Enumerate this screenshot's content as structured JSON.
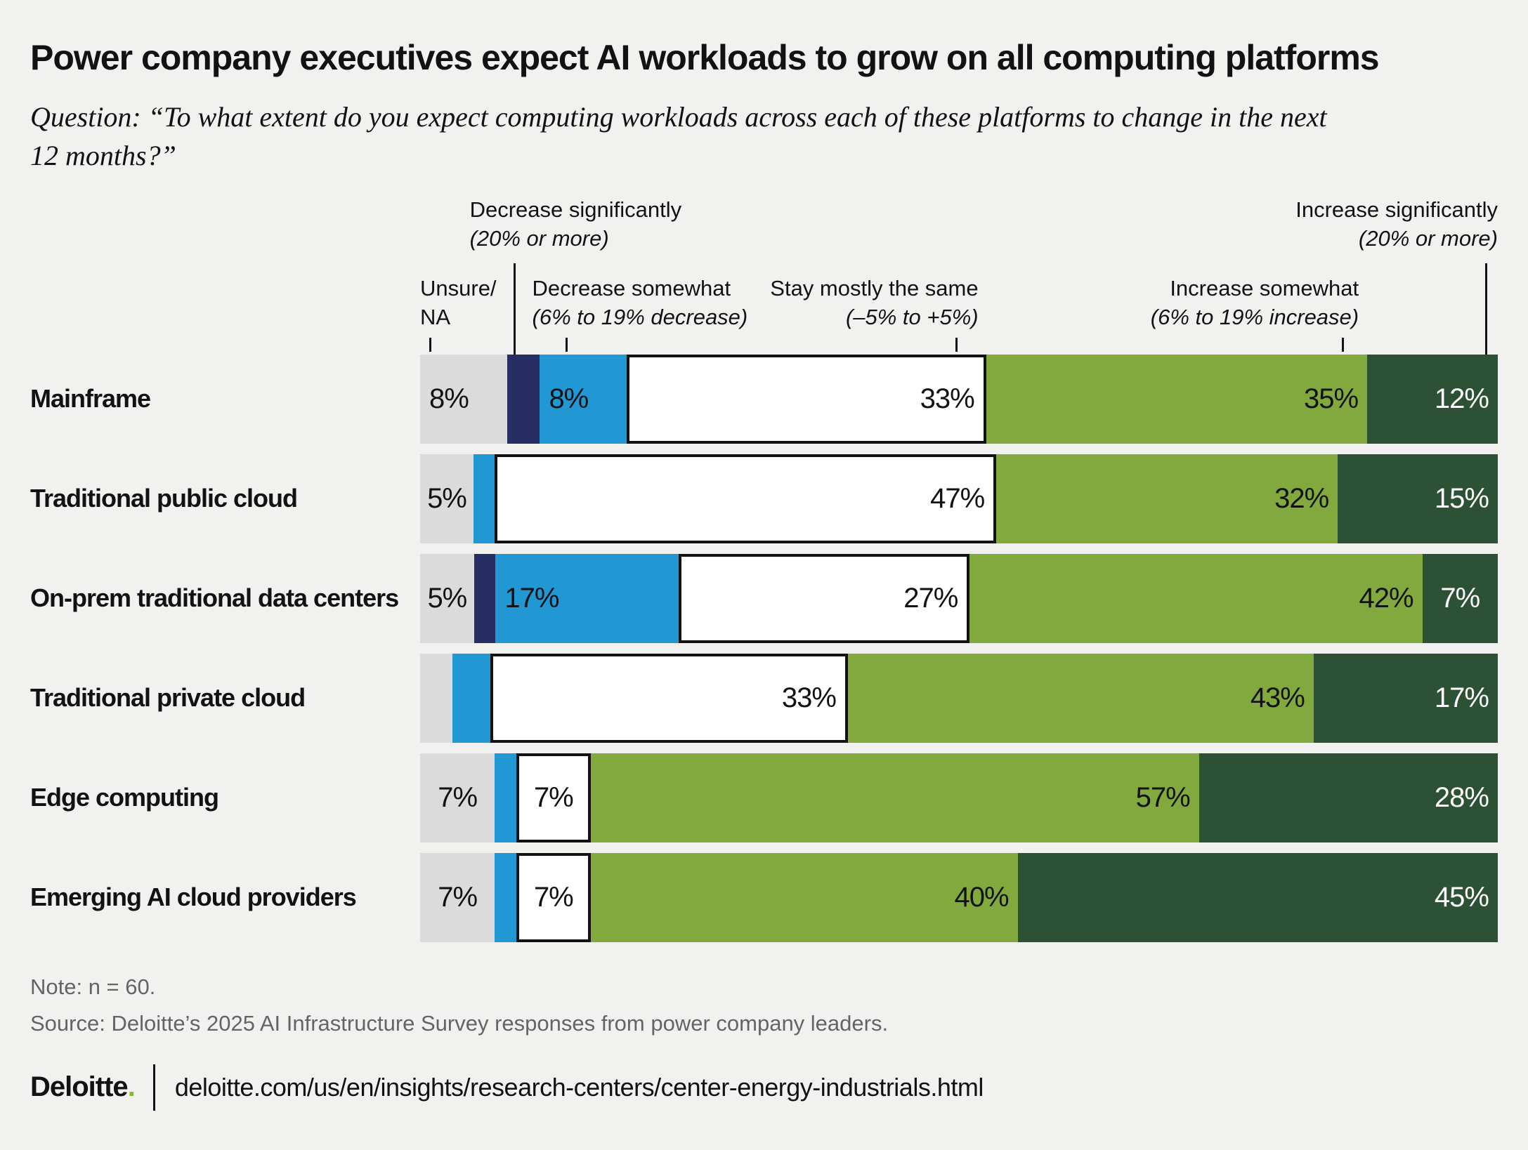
{
  "title": "Power company executives expect AI workloads to grow on all computing platforms",
  "question_lines": [
    "Question: “To what extent do you expect computing workloads across each of these platforms to change in the next",
    "12 months?”"
  ],
  "legend": {
    "unsure": {
      "line1": "Unsure/",
      "line2": "NA"
    },
    "decrease_significantly": {
      "line1": "Decrease significantly",
      "line2": "(20% or more)"
    },
    "decrease_somewhat": {
      "line1": "Decrease somewhat",
      "line2": "(6% to 19% decrease)"
    },
    "stay": {
      "line1": "Stay mostly the same",
      "line2": "(–5% to +5%)"
    },
    "increase_somewhat": {
      "line1": "Increase somewhat",
      "line2": "(6% to 19% increase)"
    },
    "increase_significantly": {
      "line1": "Increase significantly",
      "line2": "(20% or more)"
    }
  },
  "colors": {
    "unsure": "#dbdbdb",
    "decrease_significantly": "#272e63",
    "decrease_somewhat": "#2197d3",
    "stay": "#ffffff",
    "increase_somewhat": "#82a93e",
    "increase_significantly": "#2d5134",
    "background": "#f1f1ef",
    "stay_border": "#121212",
    "deloitte_green": "#86bc25"
  },
  "chart_data": {
    "type": "bar",
    "orientation": "horizontal_stacked",
    "title": "Power company executives expect AI workloads to grow on all computing platforms",
    "question": "To what extent do you expect computing workloads across each of these platforms to change in the next 12 months?",
    "legend_position": "top",
    "grid": false,
    "xlim": [
      0,
      100
    ],
    "categories": [
      "Mainframe",
      "Traditional public cloud",
      "On-prem traditional data centers",
      "Traditional private cloud",
      "Edge computing",
      "Emerging AI cloud providers"
    ],
    "series": [
      {
        "key": "unsure",
        "name": "Unsure/NA",
        "values": [
          8,
          5,
          5,
          3,
          7,
          7
        ],
        "value_labels": [
          "8%",
          "5%",
          "5%",
          "",
          "7%",
          "7%"
        ]
      },
      {
        "key": "decrease_significantly",
        "name": "Decrease significantly (20% or more)",
        "values": [
          3,
          0,
          2,
          0,
          0,
          0
        ],
        "value_labels": [
          "",
          "",
          "",
          "",
          "",
          ""
        ]
      },
      {
        "key": "decrease_somewhat",
        "name": "Decrease somewhat (6% to 19% decrease)",
        "values": [
          8,
          2,
          17,
          3.5,
          2,
          2
        ],
        "value_labels": [
          "8%",
          "",
          "17%",
          "",
          "",
          ""
        ]
      },
      {
        "key": "stay",
        "name": "Stay mostly the same (–5% to +5%)",
        "values": [
          33,
          47,
          27,
          33,
          7,
          7
        ],
        "value_labels": [
          "33%",
          "47%",
          "27%",
          "33%",
          "7%",
          "7%"
        ]
      },
      {
        "key": "increase_somewhat",
        "name": "Increase somewhat (6% to 19% increase)",
        "values": [
          35,
          32,
          42,
          43,
          57,
          40
        ],
        "value_labels": [
          "35%",
          "32%",
          "42%",
          "43%",
          "57%",
          "40%"
        ]
      },
      {
        "key": "increase_significantly",
        "name": "Increase significantly (20% or more)",
        "values": [
          12,
          15,
          7,
          17,
          28,
          45
        ],
        "value_labels": [
          "12%",
          "15%",
          "7%",
          "17%",
          "28%",
          "45%"
        ]
      }
    ]
  },
  "footer": {
    "note": "Note: n = 60.",
    "source": "Source: Deloitte’s 2025 AI Infrastructure Survey responses from power company leaders.",
    "brand": "Deloitte",
    "brand_dot": ".",
    "url": "deloitte.com/us/en/insights/research-centers/center-energy-industrials.html"
  }
}
